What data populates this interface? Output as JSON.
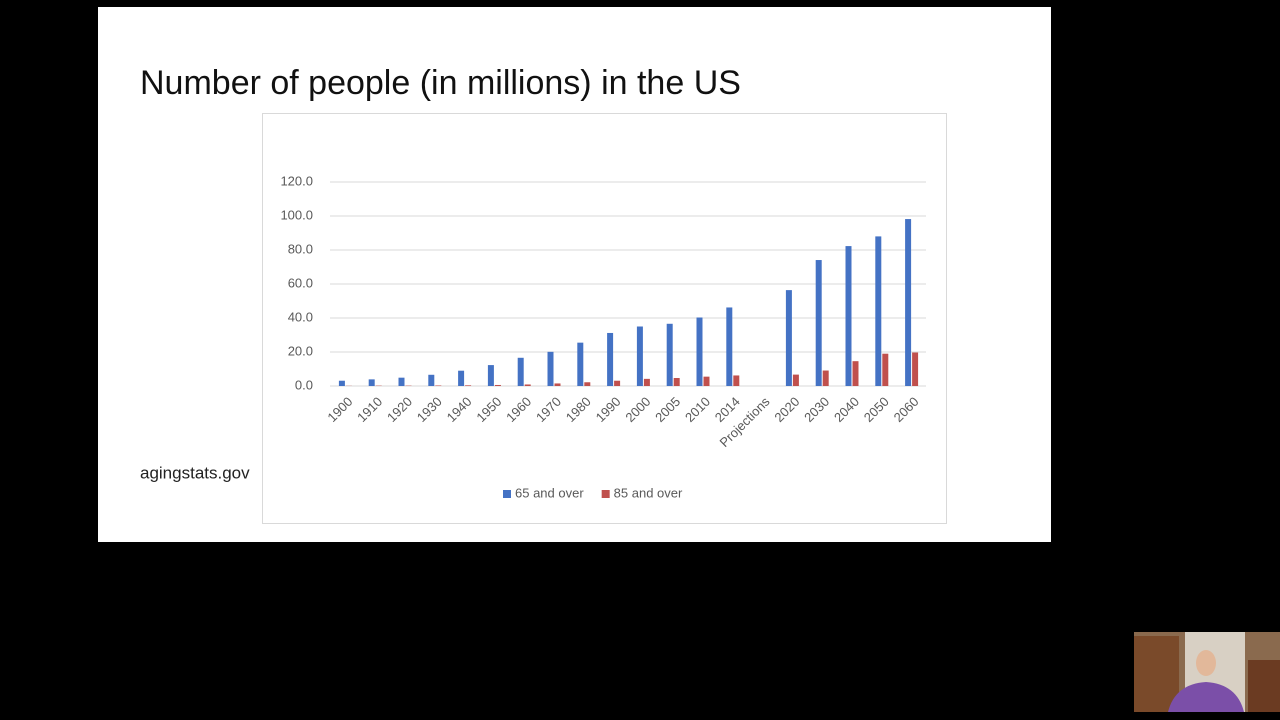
{
  "chart_data": {
    "type": "bar",
    "title": "Number of people (in millions) in the US",
    "source": "agingstats.gov",
    "categories": [
      "1900",
      "1910",
      "1920",
      "1930",
      "1940",
      "1950",
      "1960",
      "1970",
      "1980",
      "1990",
      "2000",
      "2005",
      "2010",
      "2014",
      "Projections",
      "2020",
      "2030",
      "2040",
      "2050",
      "2060"
    ],
    "series": [
      {
        "name": "65 and over",
        "color": "#4472c4",
        "values": [
          3.1,
          3.9,
          4.9,
          6.6,
          9.0,
          12.3,
          16.6,
          20.1,
          25.5,
          31.2,
          35.0,
          36.6,
          40.3,
          46.2,
          null,
          56.4,
          74.1,
          82.3,
          88.0,
          98.2
        ]
      },
      {
        "name": "85 and over",
        "color": "#c0504d",
        "values": [
          0.1,
          0.2,
          0.2,
          0.3,
          0.4,
          0.6,
          0.9,
          1.5,
          2.2,
          3.1,
          4.2,
          4.7,
          5.5,
          6.2,
          null,
          6.7,
          9.1,
          14.6,
          19.0,
          19.7
        ]
      }
    ],
    "ylim": [
      0,
      120
    ],
    "yticks": [
      {
        "value": 0,
        "label": "0.0"
      },
      {
        "value": 20,
        "label": "20.0"
      },
      {
        "value": 40,
        "label": "40.0"
      },
      {
        "value": 60,
        "label": "60.0"
      },
      {
        "value": 80,
        "label": "80.0"
      },
      {
        "value": 100,
        "label": "100.0"
      },
      {
        "value": 120,
        "label": "120.0"
      }
    ],
    "grid": true,
    "legend": "bottom"
  }
}
